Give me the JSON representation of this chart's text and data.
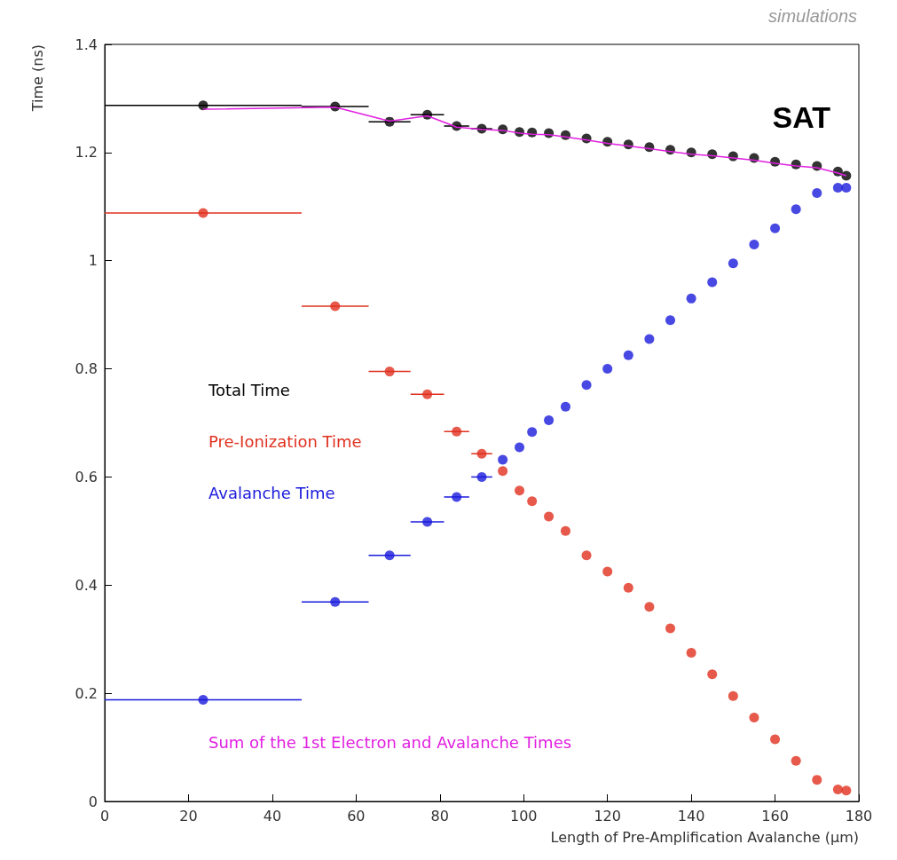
{
  "chart_data": {
    "type": "scatter",
    "xlabel": "Length of Pre-Amplification Avalanche (μm)",
    "ylabel": "Time (ns)",
    "xlim": [
      0,
      180
    ],
    "ylim": [
      0,
      1.4
    ],
    "xticks": [
      0,
      20,
      40,
      60,
      80,
      100,
      120,
      140,
      160,
      180
    ],
    "yticks": [
      0,
      0.2,
      0.4,
      0.6,
      0.8,
      1,
      1.2,
      1.4
    ],
    "grid": false,
    "legend": "left",
    "marker": "circle",
    "annotations": [
      "SAT",
      "simulations"
    ],
    "x": [
      23.5,
      55,
      68,
      77,
      84,
      90,
      95,
      99,
      102,
      106,
      110,
      115,
      120,
      125,
      130,
      135,
      140,
      145,
      150,
      155,
      160,
      165,
      170,
      175,
      177
    ],
    "series": [
      {
        "name": "Total Time",
        "color": "#000000",
        "values": [
          1.287,
          1.285,
          1.257,
          1.27,
          1.249,
          1.244,
          1.243,
          1.238,
          1.237,
          1.236,
          1.232,
          1.226,
          1.22,
          1.215,
          1.21,
          1.205,
          1.2,
          1.197,
          1.193,
          1.19,
          1.183,
          1.178,
          1.175,
          1.165,
          1.157
        ],
        "xerrors": [
          23.5,
          8,
          5,
          4,
          3,
          2.5,
          null,
          null,
          null,
          null,
          null,
          null,
          null,
          null,
          null,
          null,
          null,
          null,
          null,
          null,
          null,
          null,
          null,
          null,
          null
        ]
      },
      {
        "name": "Pre-Ionization Time",
        "color": "#e0301e",
        "values": [
          1.088,
          0.916,
          0.795,
          0.753,
          0.684,
          0.643,
          0.611,
          0.575,
          0.555,
          0.527,
          0.5,
          0.455,
          0.425,
          0.395,
          0.36,
          0.32,
          0.275,
          0.235,
          0.195,
          0.155,
          0.115,
          0.075,
          0.04,
          0.022,
          0.02
        ],
        "xerrors": [
          23.5,
          8,
          5,
          4,
          3,
          2.5,
          null,
          null,
          null,
          null,
          null,
          null,
          null,
          null,
          null,
          null,
          null,
          null,
          null,
          null,
          null,
          null,
          null,
          null,
          null
        ]
      },
      {
        "name": "Avalanche Time",
        "color": "#1a1adc",
        "values": [
          0.188,
          0.369,
          0.455,
          0.517,
          0.563,
          0.6,
          0.632,
          0.655,
          0.683,
          0.705,
          0.73,
          0.77,
          0.8,
          0.825,
          0.855,
          0.89,
          0.93,
          0.96,
          0.995,
          1.03,
          1.06,
          1.095,
          1.125,
          1.135,
          1.135
        ],
        "xerrors": [
          23.5,
          8,
          5,
          4,
          3,
          2.5,
          null,
          null,
          null,
          null,
          null,
          null,
          null,
          null,
          null,
          null,
          null,
          null,
          null,
          null,
          null,
          null,
          null,
          null,
          null
        ]
      },
      {
        "name": "Sum of the 1st Electron and Avalanche Times",
        "type": "line",
        "marker": "none",
        "color": "#e020e0",
        "values": [
          1.28,
          1.284,
          1.258,
          1.268,
          1.247,
          1.243,
          1.241,
          1.236,
          1.234,
          1.233,
          1.229,
          1.223,
          1.217,
          1.212,
          1.207,
          1.202,
          1.197,
          1.194,
          1.19,
          1.186,
          1.18,
          1.175,
          1.172,
          1.162,
          1.157
        ]
      }
    ]
  }
}
